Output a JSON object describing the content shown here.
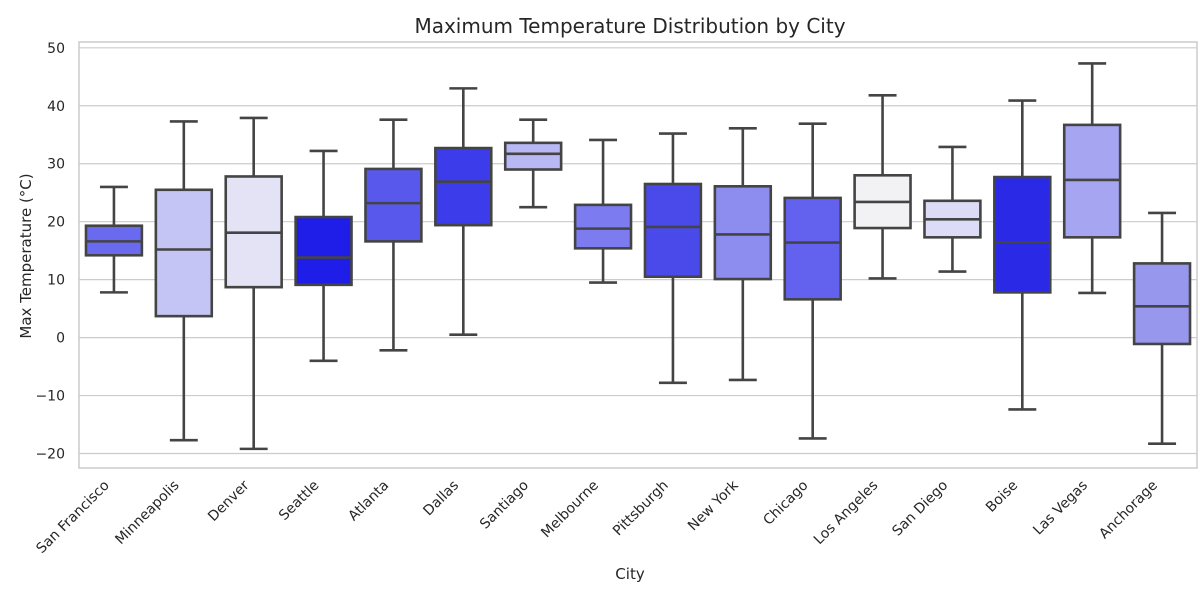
{
  "chart_data": {
    "type": "box",
    "title": "Maximum Temperature Distribution by City",
    "xlabel": "City",
    "ylabel": "Max Temperature (°C)",
    "ylim": [
      -22.5,
      51
    ],
    "yticks": [
      {
        "value": -20,
        "label": "−20"
      },
      {
        "value": -10,
        "label": "−10"
      },
      {
        "value": 0,
        "label": "0"
      },
      {
        "value": 10,
        "label": "10"
      },
      {
        "value": 20,
        "label": "20"
      },
      {
        "value": 30,
        "label": "30"
      },
      {
        "value": 40,
        "label": "40"
      },
      {
        "value": 50,
        "label": "50"
      }
    ],
    "grid": true,
    "categories": [
      "San Francisco",
      "Minneapolis",
      "Denver",
      "Seattle",
      "Atlanta",
      "Dallas",
      "Santiago",
      "Melbourne",
      "Pittsburgh",
      "New York",
      "Chicago",
      "Los Angeles",
      "San Diego",
      "Boise",
      "Las Vegas",
      "Anchorage"
    ],
    "boxes": [
      {
        "city": "San Francisco",
        "whisker_low": 7.8,
        "q1": 14.2,
        "median": 16.6,
        "q3": 19.3,
        "whisker_high": 26.0,
        "color": "#6a6af0"
      },
      {
        "city": "Minneapolis",
        "whisker_low": -17.7,
        "q1": 3.7,
        "median": 15.2,
        "q3": 25.5,
        "whisker_high": 37.3,
        "color": "#c5c5f5"
      },
      {
        "city": "Denver",
        "whisker_low": -19.2,
        "q1": 8.7,
        "median": 18.1,
        "q3": 27.8,
        "whisker_high": 37.9,
        "color": "#e3e3f5"
      },
      {
        "city": "Seattle",
        "whisker_low": -4.0,
        "q1": 9.1,
        "median": 13.8,
        "q3": 20.8,
        "whisker_high": 32.2,
        "color": "#1e1ee8"
      },
      {
        "city": "Atlanta",
        "whisker_low": -2.2,
        "q1": 16.6,
        "median": 23.2,
        "q3": 29.1,
        "whisker_high": 37.6,
        "color": "#5858ec"
      },
      {
        "city": "Dallas",
        "whisker_low": 0.5,
        "q1": 19.4,
        "median": 26.9,
        "q3": 32.7,
        "whisker_high": 43.0,
        "color": "#3c3cea"
      },
      {
        "city": "Santiago",
        "whisker_low": 22.5,
        "q1": 29.0,
        "median": 31.7,
        "q3": 33.6,
        "whisker_high": 37.6,
        "color": "#b8b8f4"
      },
      {
        "city": "Melbourne",
        "whisker_low": 9.5,
        "q1": 15.4,
        "median": 18.8,
        "q3": 22.9,
        "whisker_high": 34.1,
        "color": "#7c7cf0"
      },
      {
        "city": "Pittsburgh",
        "whisker_low": -7.8,
        "q1": 10.5,
        "median": 19.1,
        "q3": 26.5,
        "whisker_high": 35.2,
        "color": "#4a4aeb"
      },
      {
        "city": "New York",
        "whisker_low": -7.3,
        "q1": 10.1,
        "median": 17.8,
        "q3": 26.1,
        "whisker_high": 36.1,
        "color": "#8d8df0"
      },
      {
        "city": "Chicago",
        "whisker_low": -17.4,
        "q1": 6.6,
        "median": 16.4,
        "q3": 24.1,
        "whisker_high": 36.9,
        "color": "#6262ee"
      },
      {
        "city": "Los Angeles",
        "whisker_low": 10.2,
        "q1": 18.9,
        "median": 23.4,
        "q3": 28.0,
        "whisker_high": 41.8,
        "color": "#f2f2f4"
      },
      {
        "city": "San Diego",
        "whisker_low": 11.4,
        "q1": 17.3,
        "median": 20.4,
        "q3": 23.6,
        "whisker_high": 32.9,
        "color": "#dcdcf6"
      },
      {
        "city": "Boise",
        "whisker_low": -12.4,
        "q1": 7.8,
        "median": 16.4,
        "q3": 27.7,
        "whisker_high": 40.9,
        "color": "#2a2ae6"
      },
      {
        "city": "Las Vegas",
        "whisker_low": 7.7,
        "q1": 17.3,
        "median": 27.2,
        "q3": 36.7,
        "whisker_high": 47.3,
        "color": "#a5a5f2"
      },
      {
        "city": "Anchorage",
        "whisker_low": -18.3,
        "q1": -1.1,
        "median": 5.4,
        "q3": 12.8,
        "whisker_high": 21.5,
        "color": "#9797ee"
      }
    ]
  }
}
